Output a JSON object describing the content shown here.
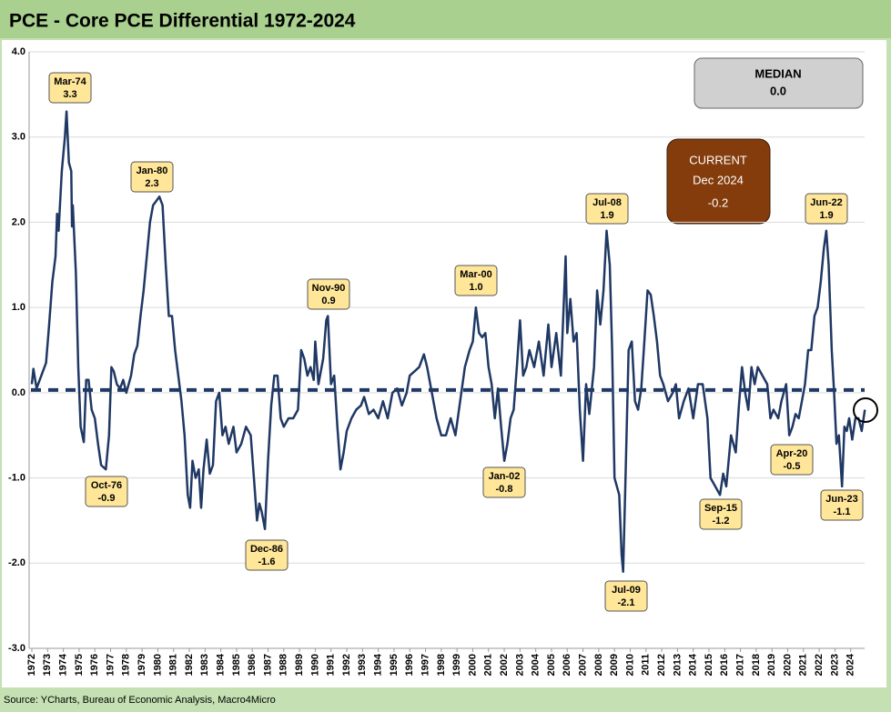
{
  "chart_data": {
    "type": "line",
    "title": "PCE - Core PCE Differential 1972-2024",
    "source": "Source: YCharts, Bureau of Economic Analysis, Macro4Micro",
    "color": "#1f3864",
    "grid": true,
    "xlim": [
      1972,
      2025
    ],
    "ylim": [
      -3,
      4
    ],
    "yticks": [
      {
        "value": -3,
        "label": "-3.0"
      },
      {
        "value": -2,
        "label": "-2.0"
      },
      {
        "value": -1,
        "label": "-1.0"
      },
      {
        "value": 0,
        "label": "0.0"
      },
      {
        "value": 1,
        "label": "1.0"
      },
      {
        "value": 2,
        "label": "2.0"
      },
      {
        "value": 3,
        "label": "3.0"
      },
      {
        "value": 4,
        "label": "4.0"
      }
    ],
    "xticks": [
      1972,
      1973,
      1974,
      1975,
      1976,
      1977,
      1978,
      1979,
      1980,
      1981,
      1982,
      1983,
      1984,
      1985,
      1986,
      1987,
      1988,
      1989,
      1990,
      1991,
      1992,
      1993,
      1994,
      1995,
      1996,
      1997,
      1998,
      1999,
      2000,
      2001,
      2002,
      2003,
      2004,
      2005,
      2006,
      2007,
      2008,
      2009,
      2010,
      2011,
      2012,
      2013,
      2014,
      2015,
      2016,
      2017,
      2018,
      2019,
      2020,
      2021,
      2022,
      2023,
      2024
    ],
    "x": [
      1972.0,
      1972.1,
      1972.3,
      1972.6,
      1972.9,
      1973.1,
      1973.3,
      1973.5,
      1973.6,
      1973.7,
      1973.9,
      1974.1,
      1974.2,
      1974.35,
      1974.5,
      1974.55,
      1974.6,
      1974.8,
      1974.95,
      1975.1,
      1975.3,
      1975.45,
      1975.6,
      1975.8,
      1976.0,
      1976.2,
      1976.4,
      1976.7,
      1976.9,
      1977.05,
      1977.2,
      1977.4,
      1977.6,
      1977.8,
      1978.0,
      1978.3,
      1978.5,
      1978.7,
      1978.9,
      1979.1,
      1979.3,
      1979.5,
      1979.7,
      1979.9,
      1980.1,
      1980.3,
      1980.5,
      1980.7,
      1980.9,
      1981.1,
      1981.3,
      1981.5,
      1981.7,
      1981.9,
      1982.05,
      1982.2,
      1982.4,
      1982.6,
      1982.75,
      1982.9,
      1983.1,
      1983.3,
      1983.5,
      1983.7,
      1983.9,
      1984.1,
      1984.3,
      1984.5,
      1984.8,
      1985.0,
      1985.3,
      1985.6,
      1985.9,
      1986.1,
      1986.3,
      1986.45,
      1986.6,
      1986.8,
      1987.0,
      1987.2,
      1987.4,
      1987.6,
      1987.8,
      1988.0,
      1988.3,
      1988.6,
      1988.9,
      1989.1,
      1989.3,
      1989.5,
      1989.7,
      1989.9,
      1990.0,
      1990.2,
      1990.5,
      1990.7,
      1990.8,
      1991.0,
      1991.2,
      1991.4,
      1991.6,
      1991.8,
      1992.0,
      1992.3,
      1992.6,
      1992.9,
      1993.1,
      1993.4,
      1993.7,
      1994.0,
      1994.3,
      1994.6,
      1994.9,
      1995.2,
      1995.5,
      1995.8,
      1996.0,
      1996.3,
      1996.6,
      1996.9,
      1997.1,
      1997.4,
      1997.7,
      1998.0,
      1998.3,
      1998.6,
      1998.9,
      1999.2,
      1999.5,
      1999.8,
      2000.0,
      2000.2,
      2000.4,
      2000.6,
      2000.8,
      2001.0,
      2001.2,
      2001.4,
      2001.6,
      2001.8,
      2002.0,
      2002.2,
      2002.4,
      2002.6,
      2002.8,
      2003.0,
      2003.2,
      2003.4,
      2003.6,
      2003.9,
      2004.2,
      2004.5,
      2004.8,
      2005.0,
      2005.3,
      2005.6,
      2005.9,
      2006.0,
      2006.2,
      2006.4,
      2006.6,
      2006.8,
      2007.0,
      2007.2,
      2007.4,
      2007.7,
      2007.9,
      2008.1,
      2008.3,
      2008.5,
      2008.7,
      2008.85,
      2009.0,
      2009.3,
      2009.45,
      2009.55,
      2009.7,
      2009.9,
      2010.1,
      2010.3,
      2010.5,
      2010.7,
      2010.9,
      2011.1,
      2011.3,
      2011.5,
      2011.7,
      2011.9,
      2012.1,
      2012.4,
      2012.7,
      2012.9,
      2013.1,
      2013.4,
      2013.7,
      2014.0,
      2014.3,
      2014.6,
      2014.9,
      2015.1,
      2015.4,
      2015.7,
      2015.9,
      2016.1,
      2016.4,
      2016.7,
      2016.9,
      2017.1,
      2017.3,
      2017.5,
      2017.7,
      2017.9,
      2018.1,
      2018.4,
      2018.7,
      2018.9,
      2019.1,
      2019.4,
      2019.6,
      2019.9,
      2020.1,
      2020.3,
      2020.5,
      2020.7,
      2020.9,
      2021.1,
      2021.3,
      2021.5,
      2021.7,
      2021.9,
      2022.1,
      2022.3,
      2022.45,
      2022.6,
      2022.8,
      2022.95,
      2023.1,
      2023.25,
      2023.45,
      2023.6,
      2023.75,
      2023.9,
      2024.1,
      2024.3,
      2024.5,
      2024.7,
      2024.9
    ],
    "values": [
      0.1,
      0.28,
      0.05,
      0.2,
      0.35,
      0.8,
      1.3,
      1.6,
      2.1,
      1.9,
      2.6,
      3.0,
      3.3,
      2.7,
      2.6,
      1.95,
      2.2,
      1.4,
      0.3,
      -0.4,
      -0.58,
      0.15,
      0.15,
      -0.2,
      -0.3,
      -0.6,
      -0.85,
      -0.9,
      -0.5,
      0.3,
      0.25,
      0.1,
      0.05,
      0.15,
      0.0,
      0.2,
      0.45,
      0.55,
      0.9,
      1.2,
      1.6,
      2.0,
      2.2,
      2.25,
      2.3,
      2.2,
      1.5,
      0.9,
      0.9,
      0.5,
      0.2,
      -0.1,
      -0.5,
      -1.2,
      -1.35,
      -0.8,
      -1.0,
      -0.9,
      -1.35,
      -0.9,
      -0.55,
      -0.95,
      -0.85,
      -0.1,
      0.0,
      -0.5,
      -0.4,
      -0.6,
      -0.4,
      -0.7,
      -0.6,
      -0.4,
      -0.5,
      -1.0,
      -1.5,
      -1.3,
      -1.4,
      -1.6,
      -0.8,
      -0.15,
      0.2,
      0.2,
      -0.3,
      -0.4,
      -0.3,
      -0.3,
      -0.2,
      0.5,
      0.4,
      0.2,
      0.3,
      0.15,
      0.6,
      0.1,
      0.4,
      0.85,
      0.9,
      0.1,
      0.2,
      -0.4,
      -0.9,
      -0.7,
      -0.45,
      -0.3,
      -0.2,
      -0.15,
      -0.05,
      -0.25,
      -0.2,
      -0.3,
      -0.1,
      -0.3,
      0.0,
      0.05,
      -0.15,
      0.0,
      0.2,
      0.25,
      0.3,
      0.45,
      0.3,
      0.0,
      -0.3,
      -0.5,
      -0.5,
      -0.3,
      -0.5,
      -0.1,
      0.3,
      0.5,
      0.6,
      1.0,
      0.7,
      0.65,
      0.7,
      0.3,
      0.1,
      -0.3,
      0.05,
      -0.4,
      -0.8,
      -0.6,
      -0.3,
      -0.2,
      0.3,
      0.85,
      0.2,
      0.3,
      0.5,
      0.3,
      0.6,
      0.2,
      0.8,
      0.3,
      0.7,
      0.2,
      1.6,
      0.7,
      1.1,
      0.6,
      0.7,
      -0.2,
      -0.8,
      0.1,
      -0.25,
      0.3,
      1.2,
      0.8,
      1.2,
      1.9,
      1.5,
      0.5,
      -1.0,
      -1.2,
      -1.9,
      -2.1,
      -1.0,
      0.5,
      0.6,
      -0.1,
      -0.2,
      0.05,
      0.6,
      1.2,
      1.15,
      0.9,
      0.6,
      0.2,
      0.1,
      -0.1,
      0.0,
      0.1,
      -0.3,
      -0.1,
      0.05,
      -0.3,
      0.1,
      0.1,
      -0.3,
      -1.0,
      -1.1,
      -1.2,
      -0.95,
      -1.1,
      -0.5,
      -0.7,
      -0.15,
      0.3,
      0.0,
      -0.2,
      0.3,
      0.1,
      0.3,
      0.2,
      0.1,
      -0.3,
      -0.2,
      -0.3,
      -0.1,
      0.1,
      -0.5,
      -0.4,
      -0.25,
      -0.3,
      -0.1,
      0.1,
      0.5,
      0.5,
      0.9,
      1.0,
      1.3,
      1.7,
      1.9,
      1.5,
      0.5,
      0.0,
      -0.6,
      -0.5,
      -1.1,
      -0.4,
      -0.45,
      -0.3,
      -0.55,
      -0.3,
      -0.3,
      -0.45,
      -0.2
    ],
    "annotations": [
      {
        "label": "Mar-74",
        "value": 3.3
      },
      {
        "label": "Jan-80",
        "value": 2.3
      },
      {
        "label": "Nov-90",
        "value": 0.9
      },
      {
        "label": "Mar-00",
        "value": 1.0,
        "value_label": "1.0"
      },
      {
        "label": "Jul-08",
        "value": 1.9
      },
      {
        "label": "Jun-22",
        "value": 1.9
      },
      {
        "label": "Oct-76",
        "value": -0.9
      },
      {
        "label": "Dec-86",
        "value": -1.6
      },
      {
        "label": "Jan-02",
        "value": -0.8
      },
      {
        "label": "Jul-09",
        "value": -2.1
      },
      {
        "label": "Sep-15",
        "value": -1.2
      },
      {
        "label": "Apr-20",
        "value": -0.5
      },
      {
        "label": "Jun-23",
        "value": -1.1
      }
    ],
    "median": {
      "label": "MEDIAN",
      "value": 0,
      "value_label": "0.0"
    },
    "current": {
      "label": "CURRENT",
      "date": "Dec 2024",
      "value": -0.2
    }
  }
}
